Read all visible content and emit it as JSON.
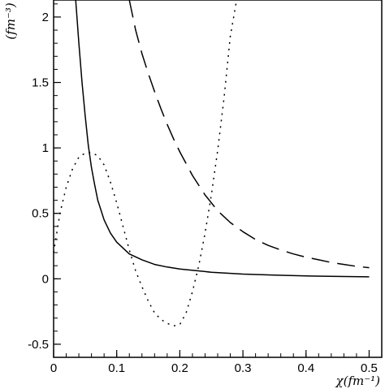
{
  "chart_data": {
    "type": "line",
    "xlabel": "χ(fm⁻¹)",
    "ylabel": "(fm⁻³)",
    "xlim": [
      0,
      0.52
    ],
    "ylim": [
      -0.6,
      2.13
    ],
    "x_ticks": [
      {
        "value": 0,
        "label": "0"
      },
      {
        "value": 0.1,
        "label": "0.1"
      },
      {
        "value": 0.2,
        "label": "0.2"
      },
      {
        "value": 0.3,
        "label": "0.3"
      },
      {
        "value": 0.4,
        "label": "0.4"
      },
      {
        "value": 0.5,
        "label": "0.5"
      }
    ],
    "y_ticks": [
      {
        "value": -0.5,
        "label": "-0.5"
      },
      {
        "value": 0,
        "label": "0"
      },
      {
        "value": 0.5,
        "label": "0.5"
      },
      {
        "value": 1,
        "label": "1"
      },
      {
        "value": 1.5,
        "label": "1.5"
      },
      {
        "value": 2,
        "label": "2"
      }
    ],
    "grid": false,
    "series": [
      {
        "style": "solid",
        "x": [
          0.035,
          0.04,
          0.045,
          0.05,
          0.055,
          0.06,
          0.065,
          0.07,
          0.08,
          0.09,
          0.1,
          0.12,
          0.14,
          0.16,
          0.18,
          0.2,
          0.25,
          0.3,
          0.35,
          0.4,
          0.45,
          0.5
        ],
        "y": [
          2.13,
          1.8,
          1.5,
          1.25,
          1.02,
          0.85,
          0.72,
          0.6,
          0.45,
          0.35,
          0.28,
          0.19,
          0.145,
          0.11,
          0.09,
          0.075,
          0.05,
          0.036,
          0.028,
          0.022,
          0.018,
          0.015
        ]
      },
      {
        "style": "dashed",
        "x": [
          0.12,
          0.13,
          0.14,
          0.15,
          0.16,
          0.17,
          0.18,
          0.19,
          0.2,
          0.22,
          0.24,
          0.26,
          0.28,
          0.3,
          0.32,
          0.34,
          0.36,
          0.38,
          0.4,
          0.42,
          0.44,
          0.46,
          0.48,
          0.5
        ],
        "y": [
          2.13,
          1.9,
          1.72,
          1.57,
          1.43,
          1.3,
          1.18,
          1.07,
          0.97,
          0.79,
          0.64,
          0.52,
          0.43,
          0.36,
          0.3,
          0.255,
          0.22,
          0.19,
          0.165,
          0.145,
          0.125,
          0.11,
          0.095,
          0.085
        ]
      },
      {
        "style": "dotted",
        "x": [
          0.0,
          0.01,
          0.02,
          0.03,
          0.04,
          0.05,
          0.06,
          0.07,
          0.08,
          0.09,
          0.1,
          0.11,
          0.12,
          0.13,
          0.14,
          0.15,
          0.16,
          0.17,
          0.18,
          0.19,
          0.2,
          0.21,
          0.22,
          0.23,
          0.24,
          0.25,
          0.26,
          0.27,
          0.28,
          0.29
        ],
        "y": [
          0.2,
          0.5,
          0.7,
          0.84,
          0.93,
          0.96,
          0.965,
          0.94,
          0.87,
          0.74,
          0.58,
          0.4,
          0.22,
          0.06,
          -0.06,
          -0.17,
          -0.26,
          -0.31,
          -0.34,
          -0.36,
          -0.35,
          -0.26,
          -0.1,
          0.1,
          0.35,
          0.64,
          0.98,
          1.38,
          1.85,
          2.13
        ]
      }
    ]
  }
}
